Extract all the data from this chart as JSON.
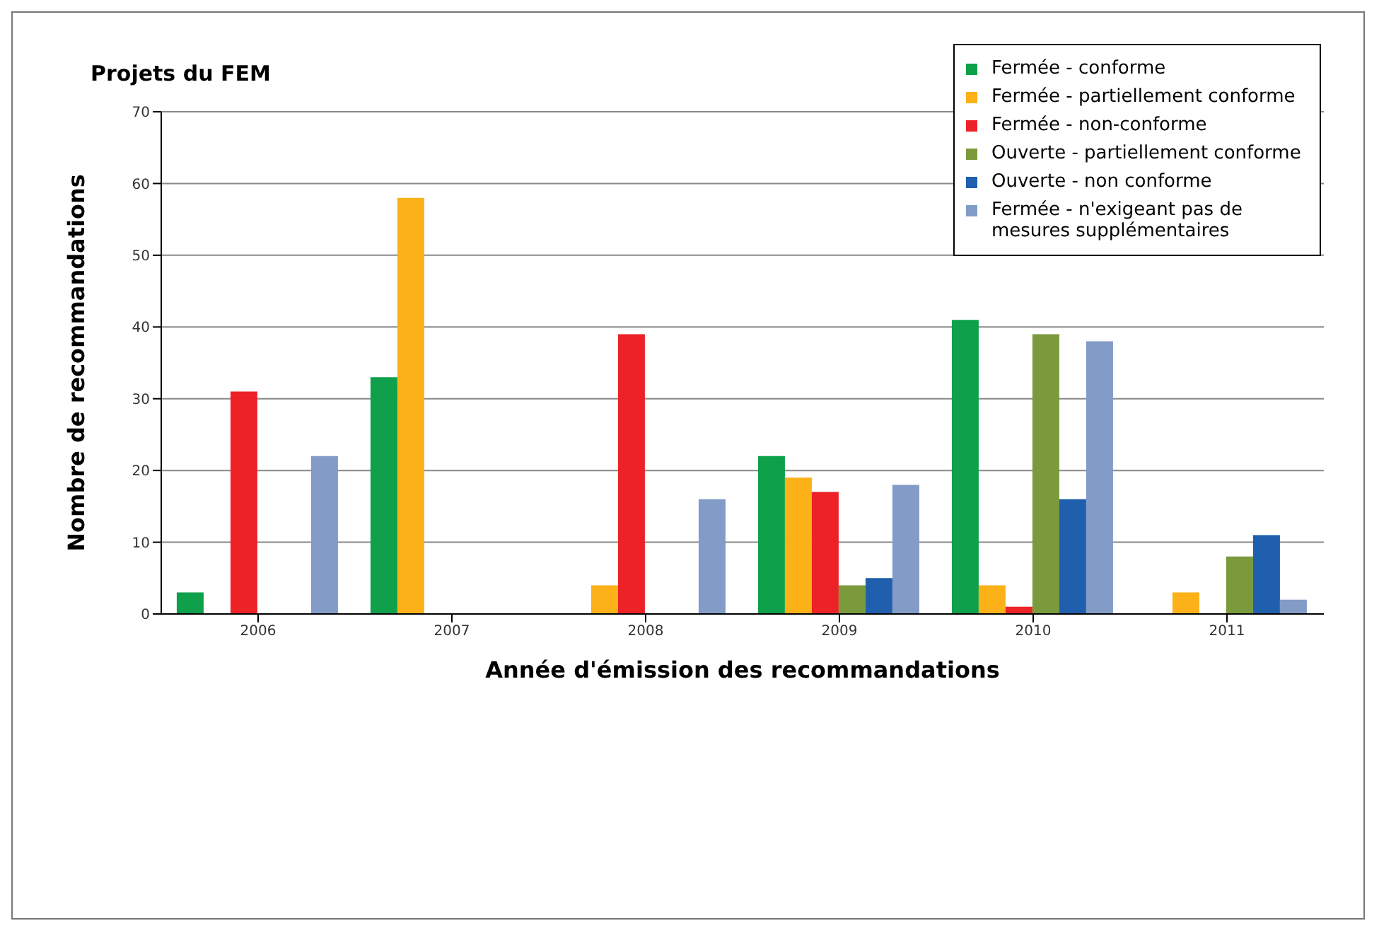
{
  "chart_data": {
    "type": "bar",
    "title": "Projets du FEM",
    "xlabel": "Année d'émission des recommandations",
    "ylabel": "Nombre de recommandations",
    "categories": [
      "2006",
      "2007",
      "2008",
      "2009",
      "2010",
      "2011"
    ],
    "series": [
      {
        "name": "Fermée - conforme",
        "color": "#0ea04a",
        "values": [
          3,
          33,
          0,
          22,
          41,
          0
        ]
      },
      {
        "name": "Fermée - partiellement conforme",
        "color": "#fbb117",
        "values": [
          0,
          58,
          4,
          19,
          4,
          3
        ]
      },
      {
        "name": "Fermée - non-conforme",
        "color": "#ec2227",
        "values": [
          31,
          0,
          39,
          17,
          1,
          0
        ]
      },
      {
        "name": "Ouverte - partiellement conforme",
        "color": "#7a9a3c",
        "values": [
          0,
          0,
          0,
          4,
          39,
          8
        ]
      },
      {
        "name": "Ouverte - non conforme",
        "color": "#1f5fad",
        "values": [
          0,
          0,
          0,
          5,
          16,
          11
        ]
      },
      {
        "name": "Fermée - n'exigeant pas de mesures supplémentaires",
        "color": "#829cc7",
        "values": [
          22,
          0,
          16,
          18,
          38,
          2
        ]
      }
    ],
    "ylim": [
      0,
      70
    ],
    "yticks": [
      0,
      10,
      20,
      30,
      40,
      50,
      60,
      70
    ],
    "grid": "y",
    "legend": "top right"
  }
}
